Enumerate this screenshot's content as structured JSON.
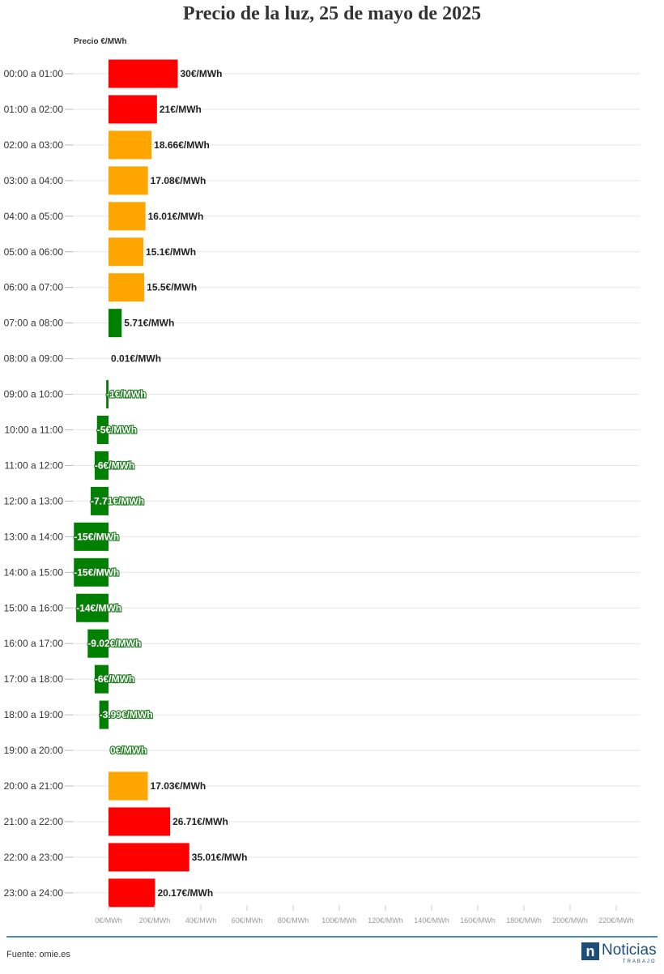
{
  "title": "Precio de la luz, 25 de mayo de 2025",
  "source": "Fuente: omie.es",
  "brand": {
    "name": "Noticias",
    "sub": "TRABAJO",
    "mark": "n"
  },
  "colors": {
    "high": "#ff0000",
    "mid": "#ffa500",
    "low": "#008000",
    "footer_line": "#4a8ab5",
    "brand": "#1d4f7a"
  },
  "chart_data": {
    "type": "bar",
    "orientation": "horizontal",
    "title": "Precio de la luz, 25 de mayo de 2025",
    "ylabel": "Precio €/MWh",
    "xlim": [
      -15,
      230
    ],
    "grid": true,
    "x_ticks": [
      0,
      20,
      40,
      60,
      80,
      100,
      120,
      140,
      160,
      180,
      200,
      220
    ],
    "x_tick_labels": [
      "0€/MWh",
      "20€/MWh",
      "40€/MWh",
      "60€/MWh",
      "80€/MWh",
      "100€/MWh",
      "120€/MWh",
      "140€/MWh",
      "160€/MWh",
      "180€/MWh",
      "200€/MWh",
      "220€/MWh"
    ],
    "categories": [
      "00:00 a 01:00",
      "01:00 a 02:00",
      "02:00 a 03:00",
      "03:00 a 04:00",
      "04:00 a 05:00",
      "05:00 a 06:00",
      "06:00 a 07:00",
      "07:00 a 08:00",
      "08:00 a 09:00",
      "09:00 a 10:00",
      "10:00 a 11:00",
      "11:00 a 12:00",
      "12:00 a 13:00",
      "13:00 a 14:00",
      "14:00 a 15:00",
      "15:00 a 16:00",
      "16:00 a 17:00",
      "17:00 a 18:00",
      "18:00 a 19:00",
      "19:00 a 20:00",
      "20:00 a 21:00",
      "21:00 a 22:00",
      "22:00 a 23:00",
      "23:00 a 24:00"
    ],
    "values": [
      30,
      21,
      18.66,
      17.08,
      16.01,
      15.1,
      15.5,
      5.71,
      0.01,
      -1,
      -5,
      -6,
      -7.71,
      -15,
      -15,
      -14,
      -9.02,
      -6,
      -3.99,
      0,
      17.03,
      26.71,
      35.01,
      20.17
    ],
    "labels": [
      "30€/MWh",
      "21€/MWh",
      "18.66€/MWh",
      "17.08€/MWh",
      "16.01€/MWh",
      "15.1€/MWh",
      "15.5€/MWh",
      "5.71€/MWh",
      "0.01€/MWh",
      "-1€/MWh",
      "-5€/MWh",
      "-6€/MWh",
      "-7.71€/MWh",
      "-15€/MWh",
      "-15€/MWh",
      "-14€/MWh",
      "-9.02€/MWh",
      "-6€/MWh",
      "-3.99€/MWh",
      "0€/MWh",
      "17.03€/MWh",
      "26.71€/MWh",
      "35.01€/MWh",
      "20.17€/MWh"
    ],
    "bar_colors": [
      "#ff0000",
      "#ff0000",
      "#ffa500",
      "#ffa500",
      "#ffa500",
      "#ffa500",
      "#ffa500",
      "#008000",
      "#008000",
      "#008000",
      "#008000",
      "#008000",
      "#008000",
      "#008000",
      "#008000",
      "#008000",
      "#008000",
      "#008000",
      "#008000",
      "#008000",
      "#ffa500",
      "#ff0000",
      "#ff0000",
      "#ff0000"
    ]
  }
}
